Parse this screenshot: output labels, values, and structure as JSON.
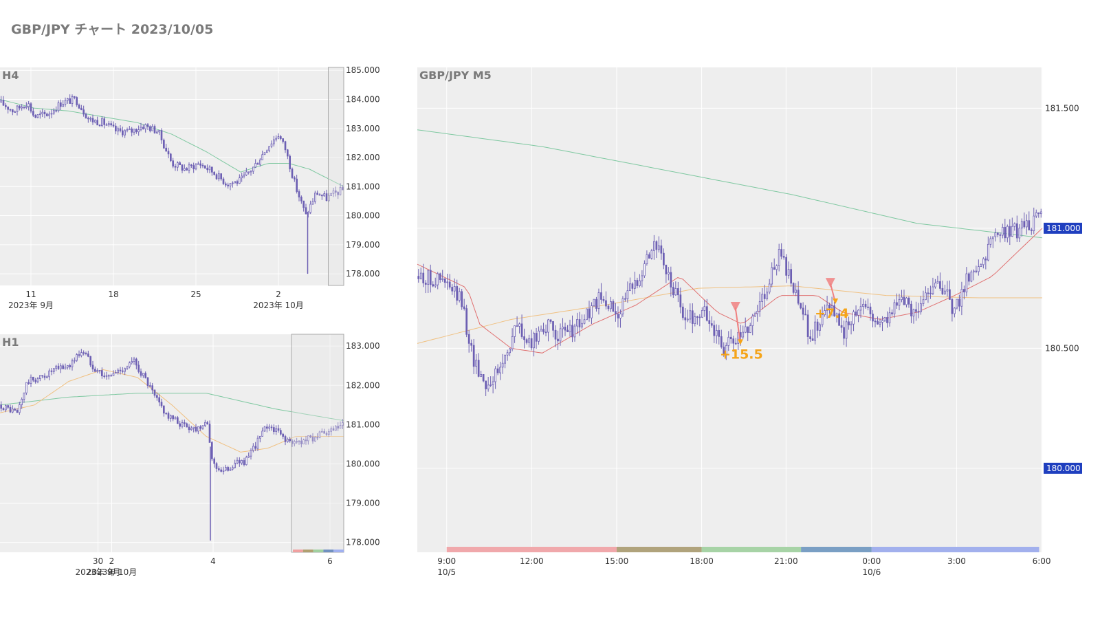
{
  "title": "GBP/JPY チャート 2023/10/05",
  "colors": {
    "plot_bg": "#eeeeee",
    "grid": "#ffffff",
    "candle": "#6c5fb3",
    "ma_green": "#7ec8a0",
    "ma_orange": "#f0c080",
    "ma_red": "#e07070",
    "badge": "#1f3fbf",
    "annotation": "#f5a418",
    "marker": "#f08080"
  },
  "chart_data": [
    {
      "id": "h4",
      "type": "candlestick",
      "label": "H4",
      "ylim": [
        177.6,
        185.1
      ],
      "y_ticks": [
        "185.000",
        "184.000",
        "183.000",
        "182.000",
        "181.000",
        "180.000",
        "179.000",
        "178.000"
      ],
      "y_tick_values": [
        185,
        184,
        183,
        182,
        181,
        180,
        179,
        178
      ],
      "x_ticks": [
        {
          "label": "11",
          "sub": "2023年 9月",
          "t": 0.09
        },
        {
          "label": "18",
          "sub": "",
          "t": 0.33
        },
        {
          "label": "25",
          "sub": "",
          "t": 0.57
        },
        {
          "label": "2",
          "sub": "2023年 10月",
          "t": 0.81
        }
      ],
      "price_path": [
        [
          0,
          183.9
        ],
        [
          0.04,
          183.6
        ],
        [
          0.08,
          183.9
        ],
        [
          0.1,
          183.4
        ],
        [
          0.14,
          183.5
        ],
        [
          0.18,
          183.9
        ],
        [
          0.22,
          184.0
        ],
        [
          0.26,
          183.3
        ],
        [
          0.3,
          183.2
        ],
        [
          0.34,
          182.9
        ],
        [
          0.38,
          182.9
        ],
        [
          0.42,
          183.1
        ],
        [
          0.46,
          182.9
        ],
        [
          0.5,
          181.8
        ],
        [
          0.54,
          181.6
        ],
        [
          0.58,
          181.8
        ],
        [
          0.62,
          181.5
        ],
        [
          0.66,
          181.1
        ],
        [
          0.7,
          181.2
        ],
        [
          0.74,
          181.7
        ],
        [
          0.78,
          182.4
        ],
        [
          0.81,
          182.8
        ],
        [
          0.83,
          182.3
        ],
        [
          0.86,
          181.0
        ],
        [
          0.89,
          180.0
        ],
        [
          0.92,
          180.8
        ],
        [
          0.95,
          180.6
        ],
        [
          0.98,
          180.8
        ],
        [
          1,
          180.9
        ]
      ],
      "ma_green_path": [
        [
          0,
          184.0
        ],
        [
          0.1,
          183.7
        ],
        [
          0.2,
          183.6
        ],
        [
          0.3,
          183.4
        ],
        [
          0.4,
          183.2
        ],
        [
          0.5,
          182.8
        ],
        [
          0.6,
          182.2
        ],
        [
          0.7,
          181.5
        ],
        [
          0.78,
          181.8
        ],
        [
          0.84,
          181.8
        ],
        [
          0.9,
          181.6
        ],
        [
          1,
          181.0
        ]
      ],
      "spike_low": [
        0.895,
        178.0
      ],
      "highlight": [
        0.955,
        1.0
      ]
    },
    {
      "id": "h1",
      "type": "candlestick",
      "label": "H1",
      "ylim": [
        177.75,
        183.3
      ],
      "y_ticks": [
        "183.000",
        "182.000",
        "181.000",
        "180.000",
        "179.000",
        "178.000"
      ],
      "y_tick_values": [
        183,
        182,
        181,
        180,
        179,
        178
      ],
      "x_ticks": [
        {
          "label": "30",
          "sub": "2023年 9月",
          "t": 0.285
        },
        {
          "label": "2",
          "sub": "2023年 10月",
          "t": 0.325
        },
        {
          "label": "4",
          "sub": "",
          "t": 0.62
        },
        {
          "label": "6",
          "sub": "",
          "t": 0.96
        }
      ],
      "price_path": [
        [
          0,
          181.5
        ],
        [
          0.05,
          181.3
        ],
        [
          0.08,
          182.1
        ],
        [
          0.12,
          182.2
        ],
        [
          0.16,
          182.4
        ],
        [
          0.2,
          182.5
        ],
        [
          0.24,
          182.9
        ],
        [
          0.27,
          182.5
        ],
        [
          0.31,
          182.2
        ],
        [
          0.35,
          182.4
        ],
        [
          0.39,
          182.6
        ],
        [
          0.42,
          182.2
        ],
        [
          0.45,
          181.7
        ],
        [
          0.49,
          181.2
        ],
        [
          0.53,
          181.0
        ],
        [
          0.57,
          180.9
        ],
        [
          0.6,
          181.1
        ],
        [
          0.62,
          180.0
        ],
        [
          0.65,
          179.8
        ],
        [
          0.68,
          180.0
        ],
        [
          0.72,
          180.1
        ],
        [
          0.75,
          180.6
        ],
        [
          0.78,
          181.0
        ],
        [
          0.81,
          180.8
        ],
        [
          0.85,
          180.5
        ],
        [
          0.88,
          180.6
        ],
        [
          0.92,
          180.7
        ],
        [
          0.96,
          180.8
        ],
        [
          1,
          181.0
        ]
      ],
      "ma_green_path": [
        [
          0,
          181.5
        ],
        [
          0.2,
          181.7
        ],
        [
          0.4,
          181.8
        ],
        [
          0.6,
          181.8
        ],
        [
          0.8,
          181.4
        ],
        [
          1,
          181.1
        ]
      ],
      "ma_orange_path": [
        [
          0,
          181.3
        ],
        [
          0.1,
          181.5
        ],
        [
          0.2,
          182.1
        ],
        [
          0.3,
          182.4
        ],
        [
          0.4,
          182.2
        ],
        [
          0.5,
          181.5
        ],
        [
          0.6,
          180.7
        ],
        [
          0.7,
          180.3
        ],
        [
          0.78,
          180.4
        ],
        [
          0.86,
          180.7
        ],
        [
          1,
          180.7
        ]
      ],
      "spike_low": [
        0.612,
        178.05
      ],
      "highlight": [
        0.848,
        1.0
      ],
      "session_strip": [
        "#f0a0a0",
        "#b0a070",
        "#a0d0a0",
        "#7090c0",
        "#a0b0f0"
      ]
    },
    {
      "id": "m5",
      "type": "candlestick",
      "label": "GBP/JPY M5",
      "ylim": [
        179.65,
        181.67
      ],
      "y_ticks": [
        "181.500",
        "181.000",
        "180.500",
        "180.000"
      ],
      "y_tick_values": [
        181.5,
        181.0,
        180.5,
        180.0
      ],
      "badges": [
        {
          "label": "181.000",
          "value": 181.0
        },
        {
          "label": "180.000",
          "value": 180.0
        }
      ],
      "x_ticks": [
        {
          "label": "9:00",
          "sub": "10/5",
          "t": 0.047
        },
        {
          "label": "12:00",
          "sub": "",
          "t": 0.183
        },
        {
          "label": "15:00",
          "sub": "",
          "t": 0.319
        },
        {
          "label": "18:00",
          "sub": "",
          "t": 0.455
        },
        {
          "label": "21:00",
          "sub": "",
          "t": 0.59
        },
        {
          "label": "0:00",
          "sub": "10/6",
          "t": 0.727
        },
        {
          "label": "3:00",
          "sub": "",
          "t": 0.863
        },
        {
          "label": "6:00",
          "sub": "",
          "t": 0.999
        }
      ],
      "price_path": [
        [
          0,
          180.8
        ],
        [
          0.04,
          180.78
        ],
        [
          0.07,
          180.7
        ],
        [
          0.09,
          180.45
        ],
        [
          0.11,
          180.35
        ],
        [
          0.13,
          180.4
        ],
        [
          0.16,
          180.6
        ],
        [
          0.18,
          180.5
        ],
        [
          0.2,
          180.6
        ],
        [
          0.23,
          180.55
        ],
        [
          0.26,
          180.6
        ],
        [
          0.29,
          180.7
        ],
        [
          0.32,
          180.65
        ],
        [
          0.35,
          180.78
        ],
        [
          0.38,
          180.95
        ],
        [
          0.4,
          180.8
        ],
        [
          0.43,
          180.62
        ],
        [
          0.46,
          180.65
        ],
        [
          0.49,
          180.5
        ],
        [
          0.52,
          180.55
        ],
        [
          0.55,
          180.7
        ],
        [
          0.58,
          180.9
        ],
        [
          0.6,
          180.75
        ],
        [
          0.63,
          180.55
        ],
        [
          0.66,
          180.7
        ],
        [
          0.68,
          180.55
        ],
        [
          0.71,
          180.7
        ],
        [
          0.74,
          180.6
        ],
        [
          0.77,
          180.7
        ],
        [
          0.8,
          180.65
        ],
        [
          0.83,
          180.8
        ],
        [
          0.86,
          180.65
        ],
        [
          0.88,
          180.8
        ],
        [
          0.9,
          180.85
        ],
        [
          0.92,
          180.95
        ],
        [
          0.94,
          180.98
        ],
        [
          0.97,
          181.0
        ],
        [
          1,
          181.05
        ]
      ],
      "ma_green_path": [
        [
          0,
          181.41
        ],
        [
          0.2,
          181.34
        ],
        [
          0.4,
          181.24
        ],
        [
          0.6,
          181.14
        ],
        [
          0.8,
          181.02
        ],
        [
          1,
          180.96
        ]
      ],
      "ma_orange_path": [
        [
          0,
          180.52
        ],
        [
          0.15,
          180.62
        ],
        [
          0.3,
          180.68
        ],
        [
          0.45,
          180.75
        ],
        [
          0.6,
          180.76
        ],
        [
          0.75,
          180.72
        ],
        [
          0.9,
          180.71
        ],
        [
          1,
          180.71
        ]
      ],
      "ma_red_path": [
        [
          0,
          180.85
        ],
        [
          0.08,
          180.75
        ],
        [
          0.1,
          180.6
        ],
        [
          0.15,
          180.5
        ],
        [
          0.2,
          180.48
        ],
        [
          0.28,
          180.6
        ],
        [
          0.35,
          180.68
        ],
        [
          0.42,
          180.8
        ],
        [
          0.48,
          180.65
        ],
        [
          0.52,
          180.6
        ],
        [
          0.58,
          180.72
        ],
        [
          0.64,
          180.72
        ],
        [
          0.68,
          180.65
        ],
        [
          0.74,
          180.62
        ],
        [
          0.8,
          180.65
        ],
        [
          0.86,
          180.72
        ],
        [
          0.92,
          180.8
        ],
        [
          1,
          181.0
        ]
      ],
      "trades": [
        {
          "label": "+15.5",
          "t_in": 0.509,
          "p_in": 180.67,
          "t_out": 0.517,
          "p_out": 180.52
        },
        {
          "label": "+7.4",
          "t_in": 0.661,
          "p_in": 180.77,
          "t_out": 0.669,
          "p_out": 180.69
        }
      ],
      "session_strip": [
        {
          "color": "#f0a8ab",
          "from": 0.047,
          "to": 0.319
        },
        {
          "color": "#b0a37c",
          "from": 0.319,
          "to": 0.455
        },
        {
          "color": "#a7d3a6",
          "from": 0.455,
          "to": 0.614
        },
        {
          "color": "#7a9fc4",
          "from": 0.614,
          "to": 0.727
        },
        {
          "color": "#a2b0ed",
          "from": 0.727,
          "to": 0.995
        }
      ]
    }
  ]
}
